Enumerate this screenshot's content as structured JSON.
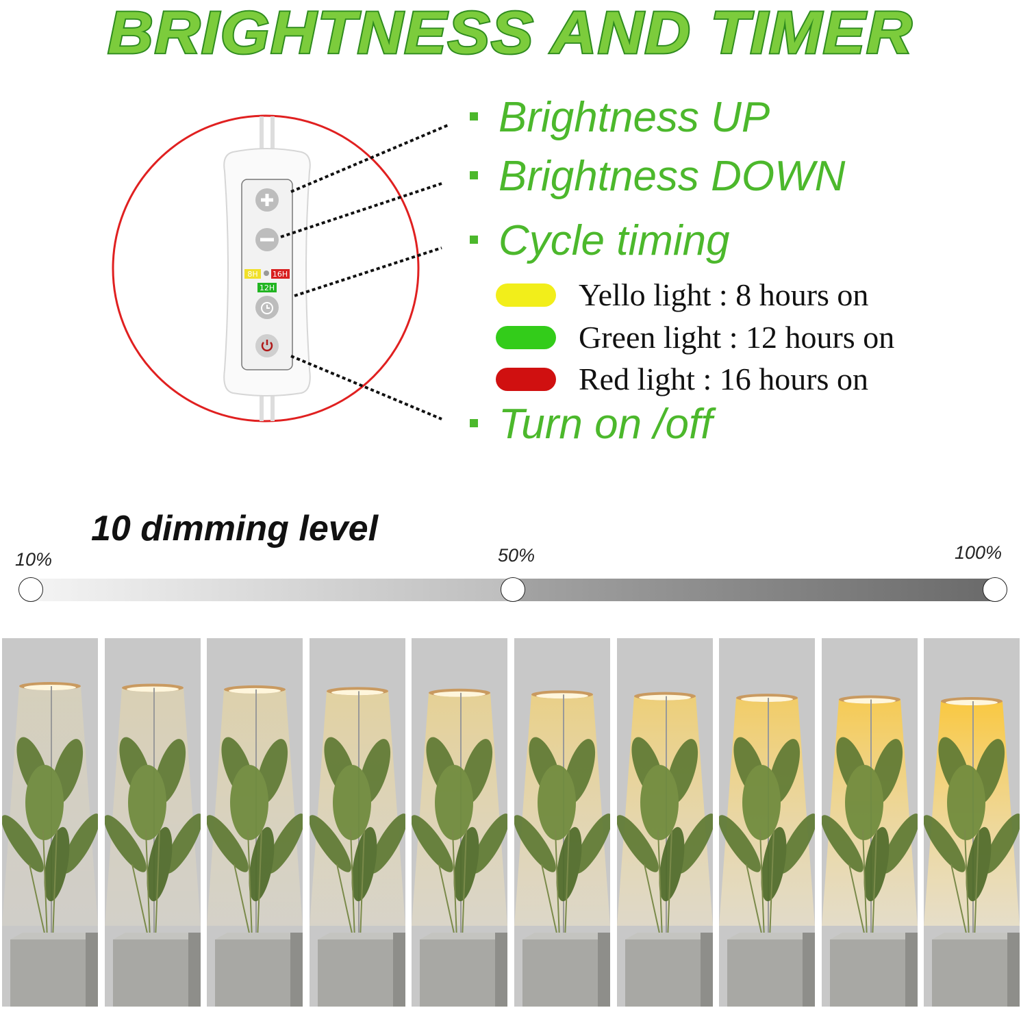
{
  "title": "BRIGHTNESS AND TIMER",
  "controller": {
    "labels": {
      "h8": "8H",
      "h16": "16H",
      "h12": "12H"
    },
    "buttons": [
      "plus-icon",
      "minus-icon",
      "alarm-clock-icon",
      "power-icon"
    ]
  },
  "features": [
    {
      "label": "Brightness UP"
    },
    {
      "label": "Brightness DOWN"
    },
    {
      "label": "Cycle timing"
    },
    {
      "label": "Turn on /off"
    }
  ],
  "timing_legend": [
    {
      "label": "Yello light : 8 hours on",
      "color": "#f2ee1a"
    },
    {
      "label": "Green light : 12 hours on",
      "color": "#33cc1a"
    },
    {
      "label": "Red light : 16 hours on",
      "color": "#d01010"
    }
  ],
  "dimming": {
    "title": "10 dimming level",
    "marks": [
      "10%",
      "50%",
      "100%"
    ],
    "levels": 10
  },
  "colors": {
    "title_green": "#7ccc3c",
    "bullet_green": "#4cb82c",
    "circle_red": "#e02020"
  }
}
